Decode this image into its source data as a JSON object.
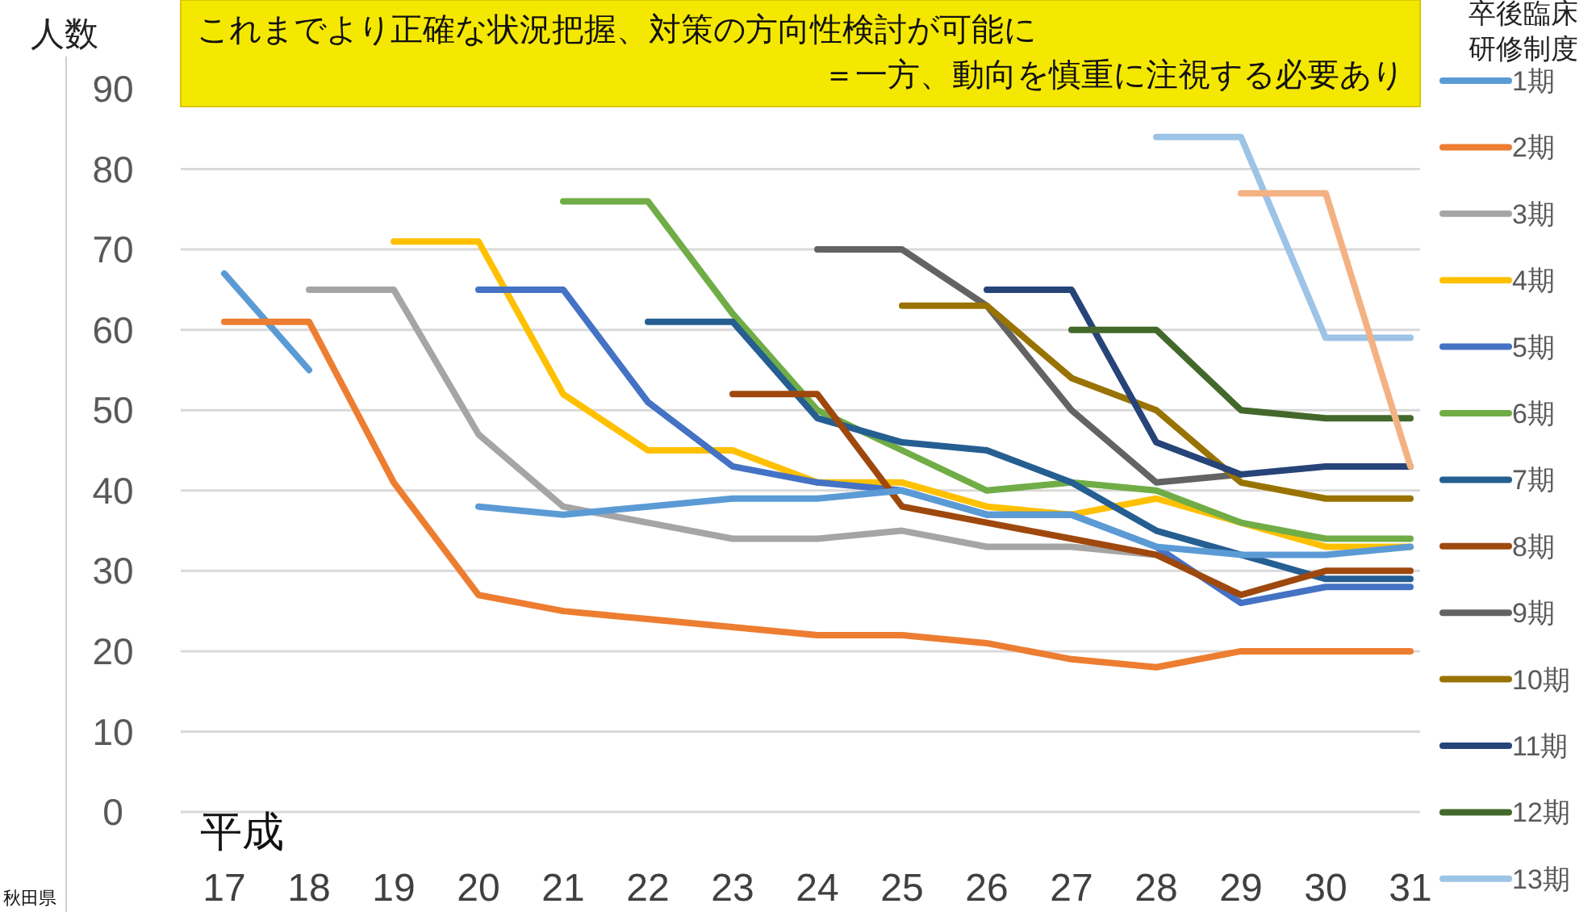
{
  "chart_data": {
    "type": "line",
    "ylabel": "人数",
    "legend_title": "卒後臨床研修制度",
    "annotations": [
      "これまでより正確な状況把握、対策の方向性検討が可能に",
      "＝一方、動向を慎重に注視する必要あり",
      "平成",
      "秋田県"
    ],
    "categories": [
      "17",
      "18",
      "19",
      "20",
      "21",
      "22",
      "23",
      "24",
      "25",
      "26",
      "27",
      "28",
      "29",
      "30",
      "31"
    ],
    "ylim": [
      0,
      90
    ],
    "yticks": [
      0,
      10,
      20,
      30,
      40,
      50,
      60,
      70,
      80,
      90
    ],
    "grid": "y",
    "legend": "right",
    "line_style": "solid",
    "series": [
      {
        "name": "1期",
        "color": "#5b9bd5",
        "values": [
          67,
          55,
          null,
          null,
          null,
          null,
          null,
          null,
          null,
          null,
          null,
          null,
          null,
          null,
          null
        ]
      },
      {
        "name": "2期",
        "color": "#ed7d31",
        "values": [
          61,
          61,
          41,
          27,
          25,
          24,
          23,
          22,
          22,
          21,
          19,
          18,
          20,
          20,
          20
        ]
      },
      {
        "name": "3期",
        "color": "#a5a5a5",
        "values": [
          null,
          65,
          65,
          47,
          38,
          36,
          34,
          34,
          35,
          33,
          33,
          32,
          null,
          null,
          null
        ]
      },
      {
        "name": "4期",
        "color": "#ffc000",
        "values": [
          null,
          null,
          71,
          71,
          52,
          45,
          45,
          41,
          41,
          38,
          37,
          39,
          36,
          33,
          33
        ]
      },
      {
        "name": "5期",
        "color": "#4472c4",
        "values": [
          null,
          null,
          null,
          65,
          65,
          51,
          43,
          41,
          40,
          37,
          37,
          33,
          26,
          28,
          28
        ]
      },
      {
        "name": "6期",
        "color": "#70ad47",
        "values": [
          null,
          null,
          null,
          null,
          76,
          76,
          62,
          50,
          45,
          40,
          41,
          40,
          36,
          34,
          34
        ]
      },
      {
        "name": "7期",
        "color": "#255e91",
        "values": [
          null,
          null,
          null,
          null,
          null,
          61,
          61,
          49,
          46,
          45,
          41,
          35,
          32,
          29,
          29
        ]
      },
      {
        "name": "8期",
        "color": "#9e480e",
        "values": [
          null,
          null,
          null,
          null,
          null,
          null,
          52,
          52,
          38,
          36,
          34,
          32,
          27,
          30,
          30
        ]
      },
      {
        "name": "9期",
        "color": "#636363",
        "values": [
          null,
          null,
          null,
          null,
          null,
          null,
          null,
          70,
          70,
          63,
          50,
          41,
          42,
          null,
          null
        ]
      },
      {
        "name": "10期",
        "color": "#997300",
        "values": [
          null,
          null,
          null,
          null,
          null,
          null,
          null,
          null,
          63,
          63,
          54,
          50,
          41,
          39,
          39
        ]
      },
      {
        "name": "11期",
        "color": "#264478",
        "values": [
          null,
          null,
          null,
          null,
          null,
          null,
          null,
          null,
          null,
          65,
          65,
          46,
          42,
          43,
          43
        ]
      },
      {
        "name": "12期",
        "color": "#43682b",
        "values": [
          null,
          null,
          null,
          null,
          null,
          null,
          null,
          null,
          null,
          null,
          60,
          60,
          50,
          49,
          49
        ]
      },
      {
        "name": "13期",
        "color": "#9dc3e6",
        "values": [
          null,
          null,
          null,
          null,
          null,
          null,
          null,
          null,
          null,
          null,
          null,
          84,
          84,
          59,
          59
        ]
      },
      {
        "color": "#f4b183",
        "values": [
          null,
          null,
          null,
          null,
          null,
          null,
          null,
          null,
          null,
          null,
          null,
          null,
          77,
          77,
          43
        ]
      },
      {
        "color": "#5b9bd5",
        "values": [
          null,
          null,
          null,
          38,
          37,
          38,
          39,
          39,
          40,
          37,
          37,
          33,
          32,
          32,
          33
        ]
      }
    ]
  }
}
